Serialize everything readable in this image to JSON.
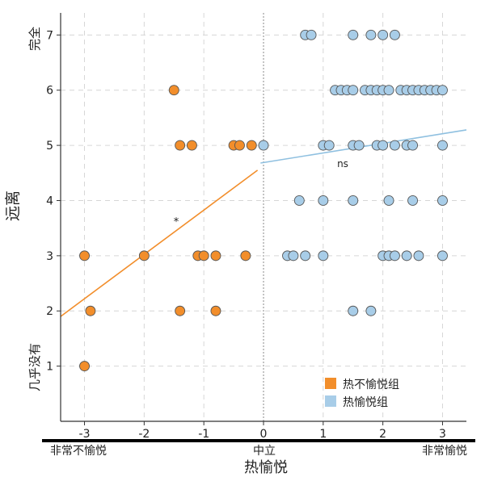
{
  "chart_data": {
    "type": "scatter",
    "title": "",
    "xlabel": "热愉悦",
    "ylabel": "远离",
    "xlim": [
      -3.4,
      3.4
    ],
    "ylim": [
      0,
      7.4
    ],
    "x_ticks": [
      -3,
      -2,
      -1,
      0,
      1,
      2,
      3
    ],
    "y_ticks": [
      1,
      2,
      3,
      4,
      5,
      6,
      7
    ],
    "grid": true,
    "legend_position": "bottom-right",
    "x_anchor_labels": {
      "left": "非常不愉悦",
      "center": "中立",
      "right": "非常愉悦"
    },
    "y_anchor_labels": {
      "top": "完全",
      "bottom": "几乎没有"
    },
    "colors": {
      "unpleasant": "#f28e2b",
      "pleasant": "#a8cde8",
      "line_unpleasant": "#f28e2b",
      "line_pleasant": "#8fc0e0"
    },
    "series": [
      {
        "name": "热不愉悦组",
        "points": [
          [
            -1.5,
            6
          ],
          [
            -1.4,
            5
          ],
          [
            -1.2,
            5
          ],
          [
            -0.5,
            5
          ],
          [
            -0.4,
            5
          ],
          [
            -0.2,
            5
          ],
          [
            -3.0,
            3
          ],
          [
            -2.0,
            3
          ],
          [
            -1.1,
            3
          ],
          [
            -1.0,
            3
          ],
          [
            -0.8,
            3
          ],
          [
            -0.3,
            3
          ],
          [
            -2.9,
            2
          ],
          [
            -1.4,
            2
          ],
          [
            -0.8,
            2
          ],
          [
            -3.0,
            1
          ]
        ],
        "trendline": {
          "x": [
            -3.4,
            -0.1
          ],
          "y": [
            1.9,
            4.55
          ]
        },
        "annotation": "*"
      },
      {
        "name": "热愉悦组",
        "points": [
          [
            0.7,
            7
          ],
          [
            0.8,
            7
          ],
          [
            1.5,
            7
          ],
          [
            1.8,
            7
          ],
          [
            2.0,
            7
          ],
          [
            2.2,
            7
          ],
          [
            1.2,
            6
          ],
          [
            1.3,
            6
          ],
          [
            1.4,
            6
          ],
          [
            1.5,
            6
          ],
          [
            1.7,
            6
          ],
          [
            1.8,
            6
          ],
          [
            1.9,
            6
          ],
          [
            2.0,
            6
          ],
          [
            2.1,
            6
          ],
          [
            2.3,
            6
          ],
          [
            2.4,
            6
          ],
          [
            2.5,
            6
          ],
          [
            2.6,
            6
          ],
          [
            2.7,
            6
          ],
          [
            2.8,
            6
          ],
          [
            2.9,
            6
          ],
          [
            3.0,
            6
          ],
          [
            0.0,
            5
          ],
          [
            1.0,
            5
          ],
          [
            1.1,
            5
          ],
          [
            1.5,
            5
          ],
          [
            1.6,
            5
          ],
          [
            1.9,
            5
          ],
          [
            2.0,
            5
          ],
          [
            2.2,
            5
          ],
          [
            2.4,
            5
          ],
          [
            2.5,
            5
          ],
          [
            3.0,
            5
          ],
          [
            0.6,
            4
          ],
          [
            1.0,
            4
          ],
          [
            1.5,
            4
          ],
          [
            2.1,
            4
          ],
          [
            2.5,
            4
          ],
          [
            3.0,
            4
          ],
          [
            0.4,
            3
          ],
          [
            0.5,
            3
          ],
          [
            0.7,
            3
          ],
          [
            1.0,
            3
          ],
          [
            2.0,
            3
          ],
          [
            2.1,
            3
          ],
          [
            2.2,
            3
          ],
          [
            2.4,
            3
          ],
          [
            2.6,
            3
          ],
          [
            3.0,
            3
          ],
          [
            1.5,
            2
          ],
          [
            1.8,
            2
          ]
        ],
        "trendline": {
          "x": [
            -0.05,
            3.4
          ],
          "y": [
            4.68,
            5.28
          ]
        },
        "annotation": "ns"
      }
    ]
  }
}
